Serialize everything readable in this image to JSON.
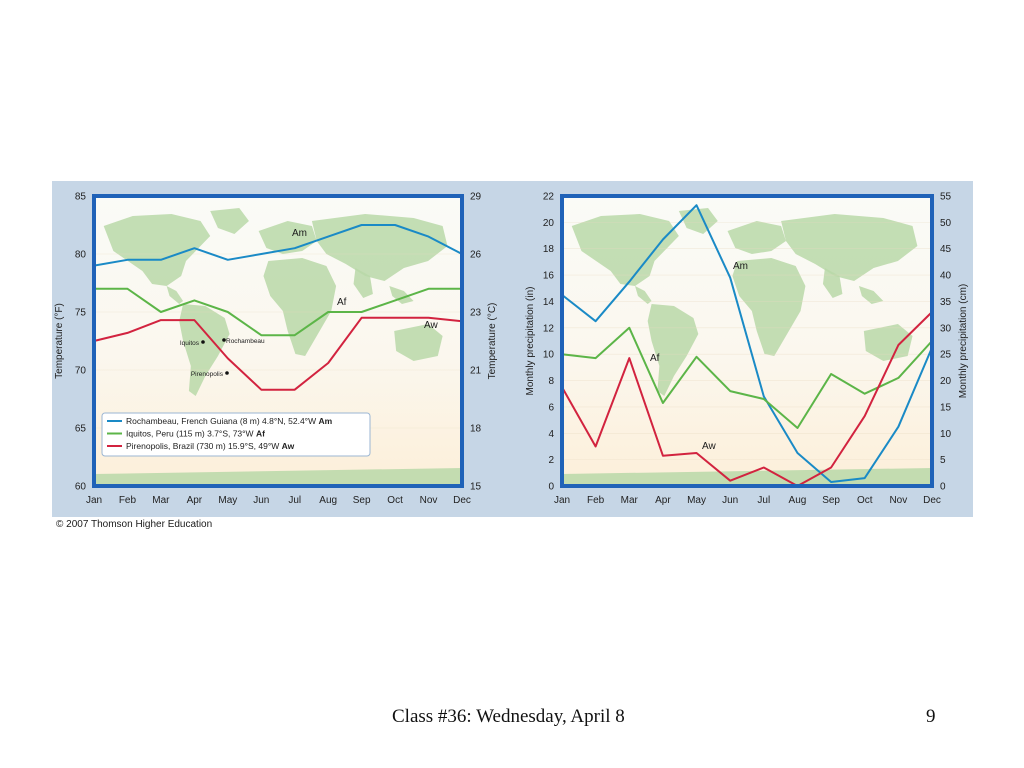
{
  "copyright": "© 2007 Thomson Higher Education",
  "footer": {
    "title": "Class #36: Wednesday, April 8",
    "page_number": "9"
  },
  "colors": {
    "Am": "#1a8ac6",
    "Af": "#5cb548",
    "Aw": "#d2233f",
    "frame": "#1f62b8"
  },
  "chart_data": [
    {
      "type": "line",
      "title": "",
      "xlabel": "",
      "ylabel": "Temperature (°F)",
      "ylabel_right": "Temperature (°C)",
      "categories": [
        "Jan",
        "Feb",
        "Mar",
        "Apr",
        "May",
        "Jun",
        "Jul",
        "Aug",
        "Sep",
        "Oct",
        "Nov",
        "Dec"
      ],
      "ylim": [
        60,
        85
      ],
      "yticks": [
        60,
        65,
        70,
        75,
        80,
        85
      ],
      "yticks_right": [
        "15",
        "18",
        "21",
        "23",
        "26",
        "29"
      ],
      "grid": false,
      "series": [
        {
          "key": "Am",
          "label": "Am",
          "values": [
            79,
            79.5,
            79.5,
            80.5,
            79.5,
            80,
            80.5,
            81.5,
            82.5,
            82.5,
            81.5,
            80
          ]
        },
        {
          "key": "Af",
          "label": "Af",
          "values": [
            77,
            77,
            75,
            76,
            75,
            73,
            73,
            75,
            75,
            76,
            77,
            77
          ]
        },
        {
          "key": "Aw",
          "label": "Aw",
          "values": [
            72.5,
            73.2,
            74.3,
            74.3,
            71,
            68.3,
            68.3,
            70.6,
            74.5,
            74.5,
            74.5,
            74.2
          ]
        }
      ],
      "legend": [
        {
          "key": "Am",
          "text": "Rochambeau, French Guiana (8 m) 4.8°N, 52.4°W ",
          "bold": "Am"
        },
        {
          "key": "Af",
          "text": "Iquitos, Peru (115 m) 3.7°S, 73°W ",
          "bold": "Af"
        },
        {
          "key": "Aw",
          "text": "Pirenopolis, Brazil (730 m) 15.9°S, 49°W ",
          "bold": "Aw"
        }
      ],
      "legend_position": "bottom-left",
      "map_labels": [
        "Iquitos",
        "Rochambeau",
        "Pirenopolis"
      ]
    },
    {
      "type": "line",
      "title": "",
      "xlabel": "",
      "ylabel": "Monthly precipitation (in)",
      "ylabel_right": "Monthly precipitation (cm)",
      "categories": [
        "Jan",
        "Feb",
        "Mar",
        "Apr",
        "May",
        "Jun",
        "Jul",
        "Aug",
        "Sep",
        "Oct",
        "Nov",
        "Dec"
      ],
      "ylim": [
        0,
        22
      ],
      "yticks": [
        0,
        2,
        4,
        6,
        8,
        10,
        12,
        14,
        16,
        18,
        20,
        22
      ],
      "yticks_right": [
        "0",
        "5",
        "10",
        "15",
        "20",
        "25",
        "30",
        "35",
        "40",
        "45",
        "50",
        "55"
      ],
      "grid": false,
      "series": [
        {
          "key": "Am",
          "label": "Am",
          "values": [
            14.5,
            12.5,
            15.5,
            18.7,
            21.3,
            15.8,
            6.8,
            2.5,
            0.3,
            0.6,
            4.5,
            10.5
          ]
        },
        {
          "key": "Af",
          "label": "Af",
          "values": [
            10,
            9.7,
            12,
            6.3,
            9.8,
            7.2,
            6.6,
            4.4,
            8.5,
            7,
            8.2,
            11
          ]
        },
        {
          "key": "Aw",
          "label": "Aw",
          "values": [
            7.5,
            3,
            9.7,
            2.3,
            2.5,
            0.4,
            1.4,
            0,
            1.4,
            5.3,
            10.7,
            13.2
          ]
        }
      ]
    }
  ]
}
